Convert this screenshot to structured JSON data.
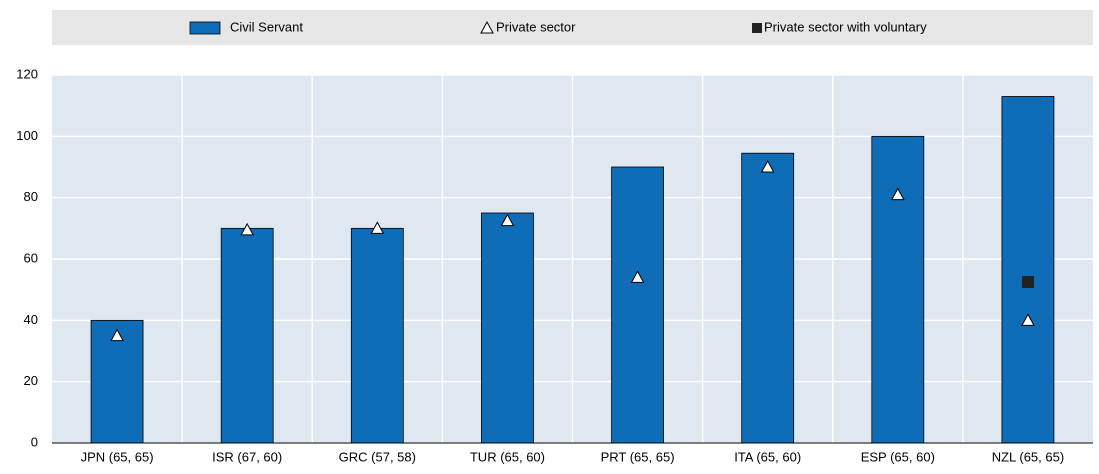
{
  "chart_data": {
    "type": "bar",
    "categories": [
      "JPN (65, 65)",
      "ISR (67, 60)",
      "GRC (57, 58)",
      "TUR (65, 60)",
      "PRT (65, 65)",
      "ITA (65, 60)",
      "ESP (65, 60)",
      "NZL (65, 65)"
    ],
    "series": [
      {
        "name": "Civil Servant",
        "color": "#0f6cb6",
        "marker": "bar",
        "values": [
          40,
          70,
          70,
          75,
          90,
          94.5,
          100,
          113
        ]
      },
      {
        "name": "Private sector",
        "color": "#ffffff",
        "marker": "triangle",
        "values": [
          35,
          69.5,
          70,
          72.5,
          54,
          90,
          81,
          40
        ]
      },
      {
        "name": "Private sector with voluntary",
        "color": "#222222",
        "marker": "square",
        "values": [
          null,
          null,
          null,
          null,
          null,
          null,
          null,
          52.5
        ]
      }
    ],
    "ylim": [
      0,
      120
    ],
    "yticks": [
      0,
      20,
      40,
      60,
      80,
      100,
      120
    ],
    "grid": true
  }
}
